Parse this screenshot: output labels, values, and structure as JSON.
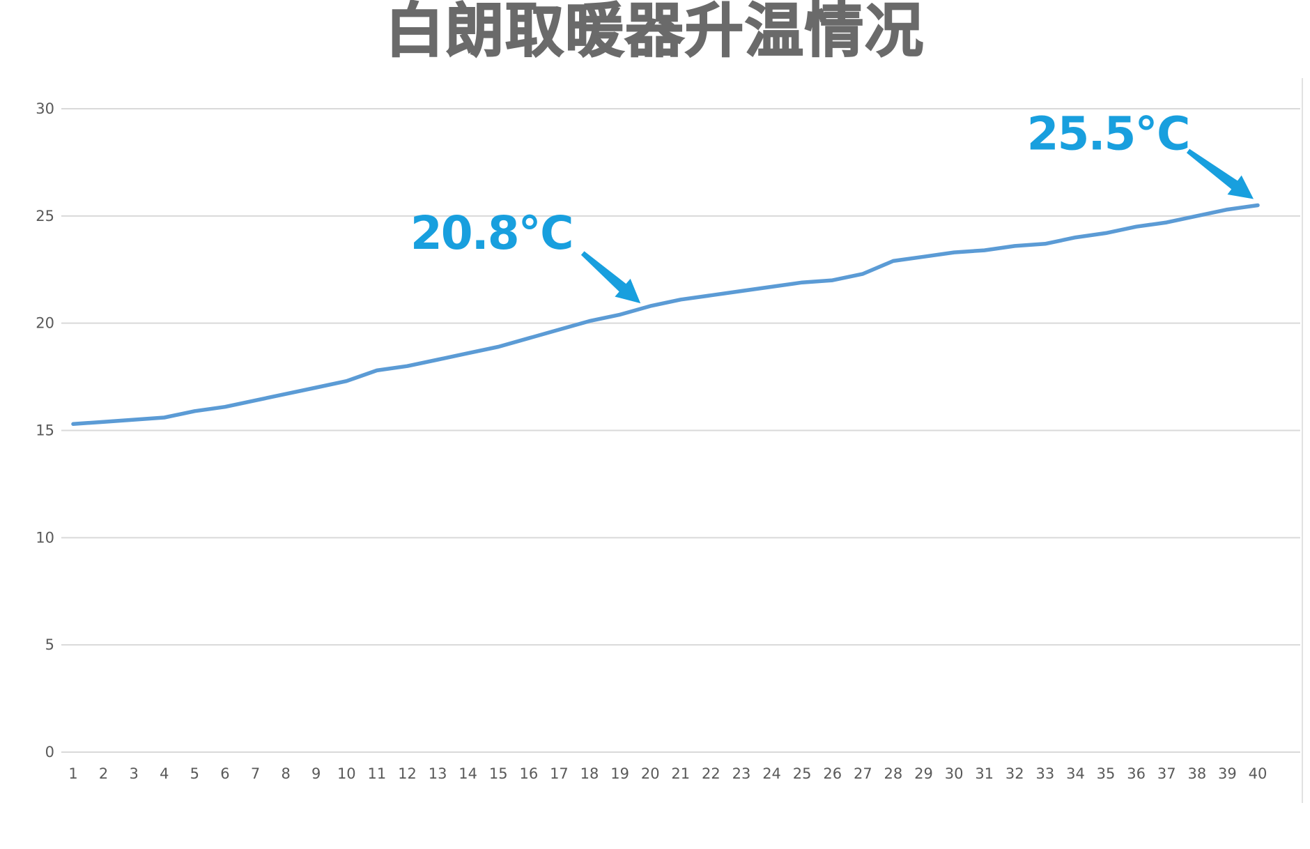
{
  "page": {
    "background": "#FFFFFF"
  },
  "chart_data": {
    "type": "line",
    "title": "白朗取暖器升温情况",
    "xlabel": "",
    "ylabel": "",
    "x": [
      1,
      2,
      3,
      4,
      5,
      6,
      7,
      8,
      9,
      10,
      11,
      12,
      13,
      14,
      15,
      16,
      17,
      18,
      19,
      20,
      21,
      22,
      23,
      24,
      25,
      26,
      27,
      28,
      29,
      30,
      31,
      32,
      33,
      34,
      35,
      36,
      37,
      38,
      39,
      40
    ],
    "values": [
      15.3,
      15.4,
      15.5,
      15.6,
      15.9,
      16.1,
      16.4,
      16.7,
      17.0,
      17.3,
      17.8,
      18.0,
      18.3,
      18.6,
      18.9,
      19.3,
      19.7,
      20.1,
      20.4,
      20.8,
      21.1,
      21.3,
      21.5,
      21.7,
      21.9,
      22.0,
      22.3,
      22.9,
      23.1,
      23.3,
      23.4,
      23.6,
      23.7,
      24.0,
      24.2,
      24.5,
      24.7,
      25.0,
      25.3,
      25.5
    ],
    "ylim": [
      0,
      30
    ],
    "yticks": [
      0,
      5,
      10,
      15,
      20,
      25,
      30
    ],
    "xticks": [
      1,
      2,
      3,
      4,
      5,
      6,
      7,
      8,
      9,
      10,
      11,
      12,
      13,
      14,
      15,
      16,
      17,
      18,
      19,
      20,
      21,
      22,
      23,
      24,
      25,
      26,
      27,
      28,
      29,
      30,
      31,
      32,
      33,
      34,
      35,
      36,
      37,
      38,
      39,
      40
    ],
    "grid": true,
    "legend": false,
    "annotations": [
      {
        "label": "20.8℃",
        "step": 20,
        "value": 20.8
      },
      {
        "label": "25.5℃",
        "step": 40,
        "value": 25.5
      }
    ]
  },
  "colors": {
    "series_line": "#5B9BD5",
    "annotation": "#189FDE",
    "title_text": "#6A6A6A",
    "axis_text": "#595959",
    "gridline": "#D9D9D9"
  }
}
